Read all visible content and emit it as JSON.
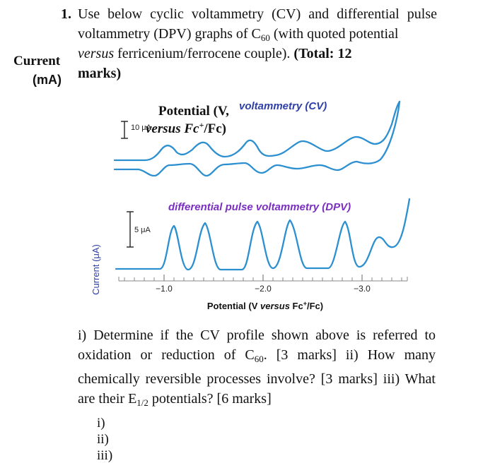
{
  "question": {
    "number": "1.",
    "line1": "Use below cyclic voltammetry (CV) and differential pulse",
    "line2_a": "voltammetry (DPV) graphs of C",
    "line2_sub": "60",
    "line2_b": " (with quoted potential",
    "line3_a": "versus",
    "line3_b": " ferricenium/ferrocene couple). ",
    "line3_c": "(Total: 12",
    "line4": "marks)"
  },
  "side_label": {
    "line1": "Current",
    "line2": "(mA)"
  },
  "chart_data": {
    "type": "line",
    "cv_title": "voltammetry (CV)",
    "overlay_text_1": "Potential (V,",
    "overlay_text_2": "versus Fc",
    "overlay_text_2_sup": "+",
    "overlay_text_2_end": "/Fc)",
    "cv_scale_bar": "10 μA",
    "dpv_title": "differential pulse voltammetry (DPV)",
    "dpv_scale_bar": "5 μA",
    "ylabel": "Current (μA)",
    "xlabel_a": "Potential (V ",
    "xlabel_b": "versus",
    "xlabel_c": " Fc",
    "xlabel_sup": "+",
    "xlabel_d": "/Fc)",
    "x_ticks": [
      "−1.0",
      "−2.0",
      "−3.0"
    ],
    "x_tick_values": [
      -1.0,
      -2.0,
      -3.0
    ],
    "xlim": [
      -0.4,
      -3.6
    ],
    "dpv_peaks_V": [
      -1.1,
      -1.5,
      -2.0,
      -2.4,
      -2.9
    ],
    "cv_couples_E_half_V": [
      -1.1,
      -1.5,
      -2.0,
      -2.4,
      -2.9
    ]
  },
  "body": {
    "p1": "i) Determine if the CV profile shown above is referred to oxidation or reduction of C",
    "p1_sub": "60",
    "p2": ". [3 marks] ii) How many chemically reversible processes involve? [3 marks] iii) What are their E",
    "p2_sub": "1/2",
    "p3": " potentials? [6 marks]"
  },
  "answers": [
    "i)",
    "ii)",
    "iii)"
  ]
}
